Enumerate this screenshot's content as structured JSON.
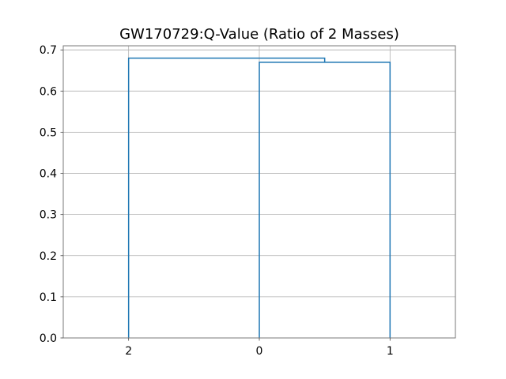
{
  "chart_data": {
    "type": "dendrogram",
    "title": "GW170729:Q-Value (Ratio of 2 Masses)",
    "xlabel": "",
    "ylabel": "",
    "leaves": [
      "2",
      "0",
      "1"
    ],
    "ylim": [
      0,
      0.71
    ],
    "yticks": [
      0.0,
      0.1,
      0.2,
      0.3,
      0.4,
      0.5,
      0.6,
      0.7
    ],
    "ytick_labels": [
      "0.0",
      "0.1",
      "0.2",
      "0.3",
      "0.4",
      "0.5",
      "0.6",
      "0.7"
    ],
    "merges": [
      {
        "left": "0",
        "right": "1",
        "height": 0.67
      },
      {
        "left": "2",
        "right": "0+1",
        "height": 0.68
      }
    ],
    "grid": true,
    "color": "#1f77b4"
  }
}
